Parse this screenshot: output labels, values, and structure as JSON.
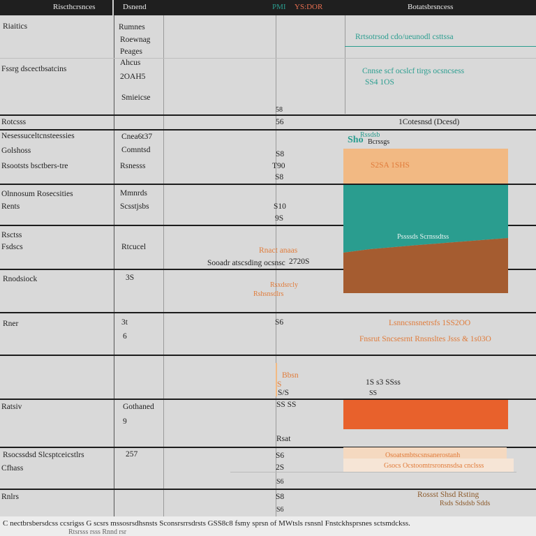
{
  "header": {
    "col1": "Riscthcrsnces",
    "col2": "Dsnend",
    "col3_teal": "PMI",
    "col3_orange": "YS:DOR",
    "col4": "Botatsbrsncess"
  },
  "rows": {
    "r1": {
      "a": "Riaitics",
      "b1": "Rumnes",
      "b2": "Roewnag",
      "b3": "Peages"
    },
    "r2": {
      "a": "Fssrg dscectbsatcins",
      "b1": "Ahcus",
      "b2": "2OAH5",
      "b3": "Smieicse"
    },
    "r3": {
      "a": "Rotcsss"
    },
    "r4": {
      "a1": "Nesessuceltcnsteessies",
      "a2": "Golshoss",
      "a3": "Rsootsts bsctbers-tre",
      "b1": "Cnea6t37",
      "b2": "Comntsd",
      "b3": "Rsnesss"
    },
    "r5": {
      "a1": "Olnnosum Rosecsities",
      "a2": "Rents",
      "b1": "Mmnrds",
      "b2": "Scsstjsbs"
    },
    "r6": {
      "a1": "Rsctss",
      "a2": "Fsdscs",
      "b1": "Rtcucel"
    },
    "r7": {
      "a": "Rnodsiock",
      "b": "3S"
    },
    "r8": {
      "a": "Rner",
      "b1": "3t",
      "b2": "6"
    },
    "r10": {
      "a": "Ratsiv",
      "b1": "Gothaned",
      "b2": "9"
    },
    "r11": {
      "a1": "Rsocssdsd Slcsptceicstlrs",
      "a2": "Cfhass",
      "b": "257"
    },
    "r12": {
      "a": "Rnlrs"
    }
  },
  "middle": {
    "m1": "58",
    "m2": "56",
    "m3": "S8",
    "m4": "T90",
    "m5": "S8",
    "m6": "S10",
    "m7": "9S",
    "m8_orange": "Rnact anaas",
    "m9": "Sooadr atscsding ocsnsc",
    "m9_num": "2720S",
    "m10_orange": "Rsxdsrcly",
    "m11_orange": "Rshsnsdlrs",
    "m12": "S6",
    "m13_orange": "Bbsn",
    "m14_orange": "S",
    "m15": "S/S",
    "m16": "SS SS",
    "m17": "Rsat",
    "m18": "S6",
    "m19": "2S",
    "m20": "S6",
    "m21": "S8",
    "m22": "S6"
  },
  "right": {
    "teal1": "Rrtsotrsod cdo/ueunodl csttssa",
    "teal2": "Cnnse scf ocslcf tirgs ocsncsess",
    "teal3": "SS4 1OS",
    "legend_label": "1Cotesnsd (Dcesd)",
    "sho": "Sho",
    "sho_sub": "Rssdsb",
    "sho_title": "Bcrssgs",
    "peach_label": "S2SA 1SHS",
    "teal_inner": "Pssssds Scrnssdtss",
    "orange_t1": "Lsnncsnsnetrsfs 1SS2OO",
    "orange_t2": "Fnsrut Sncsesrnt Rnsnsltes Jsss & 1s03O",
    "block_label": "1S  s3 SSss",
    "block_sub": "SS",
    "cream_t1": "Osoatsmbtscsnsanerostanh",
    "cream_t2": "Gsocs Ocstoomtrsronsnsdsa cnclsss",
    "last_t1": "Rossst Shsd Rsting",
    "last_t2": "Rsds Sdsdsb Sdds"
  },
  "chart_data": {
    "type": "area",
    "title": "",
    "series": [
      {
        "name": "",
        "color": "#f2b983",
        "values": [
          1,
          1
        ]
      },
      {
        "name": "",
        "color": "#2a9d8f",
        "values": [
          1,
          1
        ]
      },
      {
        "name": "",
        "color": "#a55c30",
        "values": [
          1,
          1
        ]
      },
      {
        "name": "",
        "color": "#e8612c",
        "values": [
          1
        ]
      }
    ]
  },
  "footer": {
    "text": "C nectbrsbersdcss ccsrigss G scsrs mssosrsdhsnsts Sconsrsrrsdrsts GSS8c8 fsmy sprsn of MWtsls rsnsnl Fnstckhsprsnes sctsmdckss.",
    "subtext": "Rtsrsss rsss    Rnnd rsr"
  }
}
